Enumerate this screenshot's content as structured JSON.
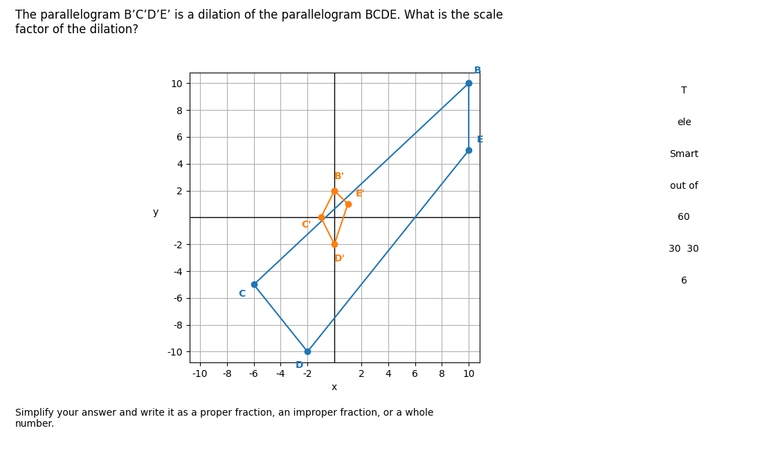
{
  "chart_data": {
    "type": "line",
    "title": "The parallelogram B’C’D’E’ is a dilation of the parallelogram BCDE. What is the scale\nfactor of the dilation?",
    "subtitle": "Simplify your answer and write it as a proper fraction, an improper fraction, or a whole\nnumber.",
    "xlabel": "x",
    "ylabel": "y",
    "series": [
      {
        "x": [
          10,
          -6,
          -2,
          10
        ],
        "y": [
          10,
          -5,
          -10,
          5
        ],
        "point_labels": [
          "B",
          "C",
          "D",
          "E"
        ]
      },
      {
        "x": [
          0,
          -1,
          0,
          1
        ],
        "y": [
          2,
          0,
          -2,
          1
        ],
        "point_labels": [
          "B'",
          "C'",
          "D'",
          "E'"
        ]
      }
    ],
    "marker": "o",
    "xlim": [
      -10.8,
      10.8
    ],
    "ylim": [
      -10.8,
      10.8
    ],
    "xticks": [
      -10,
      -8,
      -6,
      -4,
      -2,
      2,
      4,
      6,
      8,
      10
    ],
    "yticks": [
      -10,
      -8,
      -6,
      -4,
      -2,
      2,
      4,
      6,
      8,
      10
    ],
    "grid": true,
    "annotations": [
      "T",
      "ele",
      "Smart",
      "out of",
      "60",
      "30  30",
      "6"
    ]
  }
}
